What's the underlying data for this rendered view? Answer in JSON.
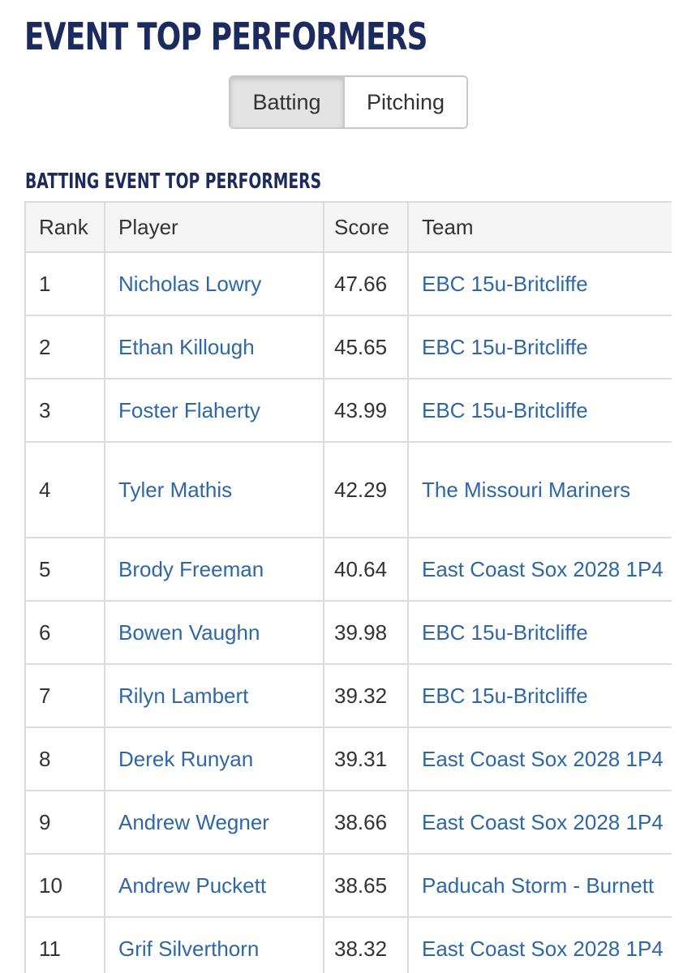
{
  "page_title": "EVENT TOP PERFORMERS",
  "tabs": [
    {
      "label": "Batting",
      "active": true
    },
    {
      "label": "Pitching",
      "active": false
    }
  ],
  "section_title": "BATTING EVENT TOP PERFORMERS",
  "table": {
    "headers": [
      "Rank",
      "Player",
      "Score",
      "Team"
    ],
    "rows": [
      {
        "rank": "1",
        "player": "Nicholas Lowry",
        "score": "47.66",
        "team": "EBC 15u-Britcliffe"
      },
      {
        "rank": "2",
        "player": "Ethan Killough",
        "score": "45.65",
        "team": "EBC 15u-Britcliffe"
      },
      {
        "rank": "3",
        "player": "Foster Flaherty",
        "score": "43.99",
        "team": "EBC 15u-Britcliffe"
      },
      {
        "rank": "4",
        "player": "Tyler Mathis",
        "score": "42.29",
        "team": "The Missouri Mariners"
      },
      {
        "rank": "5",
        "player": "Brody Freeman",
        "score": "40.64",
        "team": "East Coast Sox 2028 1P4"
      },
      {
        "rank": "6",
        "player": "Bowen Vaughn",
        "score": "39.98",
        "team": "EBC 15u-Britcliffe"
      },
      {
        "rank": "7",
        "player": "Rilyn Lambert",
        "score": "39.32",
        "team": "EBC 15u-Britcliffe"
      },
      {
        "rank": "8",
        "player": "Derek Runyan",
        "score": "39.31",
        "team": "East Coast Sox 2028 1P4"
      },
      {
        "rank": "9",
        "player": "Andrew Wegner",
        "score": "38.66",
        "team": "East Coast Sox 2028 1P4"
      },
      {
        "rank": "10",
        "player": "Andrew Puckett",
        "score": "38.65",
        "team": "Paducah Storm - Burnett"
      },
      {
        "rank": "11",
        "player": "Grif Silverthorn",
        "score": "38.32",
        "team": "East Coast Sox 2028 1P4"
      }
    ]
  },
  "colors": {
    "heading": "#1c2a5e",
    "link": "#2f67a6",
    "border": "#dcdcdc"
  }
}
